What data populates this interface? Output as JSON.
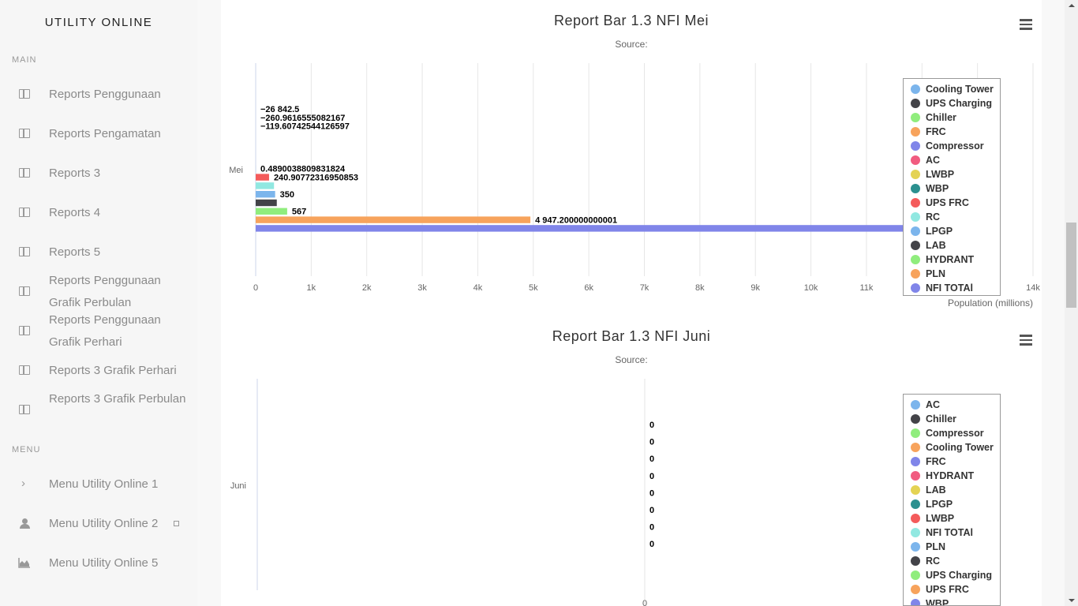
{
  "app": {
    "brand": "UTILITY ONLINE"
  },
  "sidebar": {
    "main_label": "MAIN",
    "menu_label": "MENU",
    "main_items": [
      {
        "label": "Reports Penggunaan",
        "icon": "table-icon"
      },
      {
        "label": "Reports Pengamatan",
        "icon": "table-icon"
      },
      {
        "label": "Reports 3",
        "icon": "table-icon"
      },
      {
        "label": "Reports 4",
        "icon": "table-icon"
      },
      {
        "label": "Reports 5",
        "icon": "table-icon"
      },
      {
        "label": "Reports Penggunaan Grafik Perbulan",
        "icon": "table-icon"
      },
      {
        "label": "Reports Penggunaan Grafik Perhari",
        "icon": "table-icon"
      },
      {
        "label": "Reports 3 Grafik Perhari",
        "icon": "table-icon"
      },
      {
        "label": "Reports 3 Grafik Perbulan",
        "icon": "table-icon"
      }
    ],
    "menu_items": [
      {
        "label": "Menu Utility Online 1",
        "icon": "chevron-right-icon"
      },
      {
        "label": "Menu Utility Online 2",
        "icon": "user-icon"
      },
      {
        "label": "Menu Utility Online 5",
        "icon": "area-chart-icon"
      }
    ]
  },
  "chart_data": [
    {
      "type": "bar",
      "orientation": "horizontal",
      "title": "Report Bar 1.3 NFI Mei",
      "subtitle": "Source:",
      "categories": [
        "Mei"
      ],
      "xlabel": "Population (millions)",
      "xlim": [
        0,
        14000
      ],
      "xticks": [
        "0",
        "1k",
        "2k",
        "3k",
        "4k",
        "5k",
        "6k",
        "7k",
        "8k",
        "9k",
        "10k",
        "11k",
        "12k",
        "13k",
        "14k"
      ],
      "grid": true,
      "legend_position": "right",
      "series": [
        {
          "name": "Cooling Tower",
          "value": -26842.5,
          "label": "−26 842.5",
          "color": "#7cb5ec"
        },
        {
          "name": "UPS Charging",
          "value": -260.9616555082167,
          "label": "−260.9616555082167",
          "color": "#434348"
        },
        {
          "name": "Chiller",
          "value": -119.60742544126597,
          "label": "−119.60742544126597",
          "color": "#90ed7d"
        },
        {
          "name": "FRC",
          "value": 0,
          "label": "",
          "color": "#f7a35c"
        },
        {
          "name": "Compressor",
          "value": 0,
          "label": "",
          "color": "#8085e9"
        },
        {
          "name": "AC",
          "value": 0,
          "label": "",
          "color": "#f15c80"
        },
        {
          "name": "LWBP",
          "value": 0,
          "label": "",
          "color": "#e4d354"
        },
        {
          "name": "WBP",
          "value": 0.4890038809831824,
          "label": "0.4890038809831824",
          "color": "#2b908f"
        },
        {
          "name": "UPS FRC",
          "value": 240.90772316950853,
          "label": "240.90772316950853",
          "color": "#f45b5b"
        },
        {
          "name": "RC",
          "value": 330,
          "label": "",
          "color": "#91e8e1"
        },
        {
          "name": "LPGP",
          "value": 350,
          "label": "350",
          "color": "#7cb5ec"
        },
        {
          "name": "LAB",
          "value": 380,
          "label": "",
          "color": "#434348"
        },
        {
          "name": "HYDRANT",
          "value": 567,
          "label": "567",
          "color": "#90ed7d"
        },
        {
          "name": "PLN",
          "value": 4947.200000000001,
          "label": "4 947.200000000001",
          "color": "#f7a35c"
        },
        {
          "name": "NFI TOTAl",
          "value": 12000,
          "label": "",
          "color": "#8085e9"
        }
      ]
    },
    {
      "type": "bar",
      "orientation": "horizontal",
      "title": "Report Bar 1.3 NFI Juni",
      "subtitle": "Source:",
      "categories": [
        "Juni"
      ],
      "xticks": [
        "0"
      ],
      "legend_position": "right",
      "series": [
        {
          "name": "AC",
          "value": 0,
          "label": "0",
          "color": "#7cb5ec"
        },
        {
          "name": "Chiller",
          "value": 0,
          "label": "0",
          "color": "#434348"
        },
        {
          "name": "Compressor",
          "value": 0,
          "label": "0",
          "color": "#90ed7d"
        },
        {
          "name": "Cooling Tower",
          "value": 0,
          "label": "0",
          "color": "#f7a35c"
        },
        {
          "name": "FRC",
          "value": 0,
          "label": "0",
          "color": "#8085e9"
        },
        {
          "name": "HYDRANT",
          "value": 0,
          "label": "0",
          "color": "#f15c80"
        },
        {
          "name": "LAB",
          "value": 0,
          "label": "0",
          "color": "#e4d354"
        },
        {
          "name": "LPGP",
          "value": 0,
          "label": "0",
          "color": "#2b908f"
        },
        {
          "name": "LWBP",
          "value": 0,
          "label": "",
          "color": "#f45b5b"
        },
        {
          "name": "NFI TOTAl",
          "value": 0,
          "label": "",
          "color": "#91e8e1"
        },
        {
          "name": "PLN",
          "value": 0,
          "label": "",
          "color": "#7cb5ec"
        },
        {
          "name": "RC",
          "value": 0,
          "label": "",
          "color": "#434348"
        },
        {
          "name": "UPS Charging",
          "value": 0,
          "label": "",
          "color": "#90ed7d"
        },
        {
          "name": "UPS FRC",
          "value": 0,
          "label": "",
          "color": "#f7a35c"
        },
        {
          "name": "WBP",
          "value": 0,
          "label": "",
          "color": "#8085e9"
        }
      ]
    }
  ]
}
